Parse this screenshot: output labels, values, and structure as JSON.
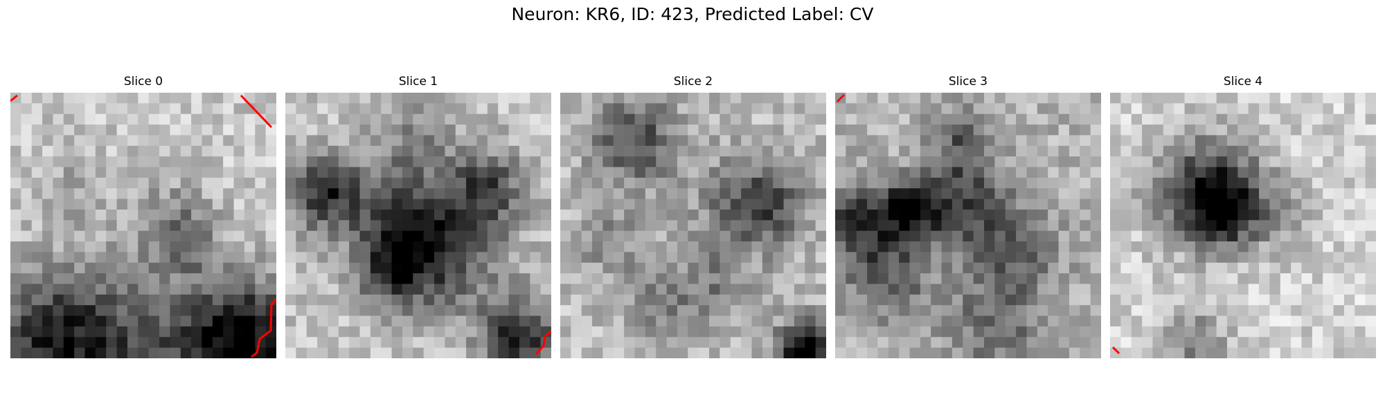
{
  "figure": {
    "title": "Neuron: KR6, ID: 423, Predicted Label: CV"
  },
  "panels": [
    {
      "title": "Slice 0"
    },
    {
      "title": "Slice 1"
    },
    {
      "title": "Slice 2"
    },
    {
      "title": "Slice 3"
    },
    {
      "title": "Slice 4"
    }
  ],
  "colors": {
    "contour": "#ff0000",
    "colormap": "grayscale (dark = high intensity)"
  }
}
